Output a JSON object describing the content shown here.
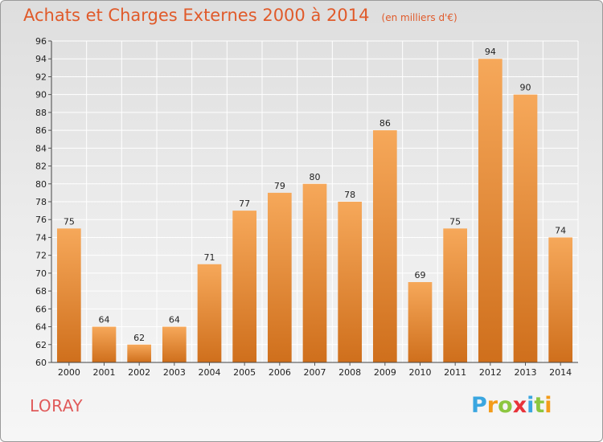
{
  "title": "Achats et Charges Externes 2000 à 2014",
  "unit": "(en milliers d'€)",
  "commune": "LORAY",
  "brand": {
    "letters": [
      "P",
      "r",
      "o",
      "x",
      "i",
      "t",
      "i"
    ],
    "colors": [
      "#3aa6e0",
      "#f39c1a",
      "#8cc63f",
      "#e8333a",
      "#3aa6e0",
      "#8cc63f",
      "#f39c1a"
    ]
  },
  "colors": {
    "bar_light": "#f6a85a",
    "bar_dark": "#cf6f1c",
    "grid": "#ffffff",
    "title": "#e05a2a"
  },
  "chart_data": {
    "type": "bar",
    "categories": [
      "2000",
      "2001",
      "2002",
      "2003",
      "2004",
      "2005",
      "2006",
      "2007",
      "2008",
      "2009",
      "2010",
      "2011",
      "2012",
      "2013",
      "2014"
    ],
    "values": [
      75,
      64,
      62,
      64,
      71,
      77,
      79,
      80,
      78,
      86,
      69,
      75,
      94,
      90,
      74
    ],
    "ylim": [
      60,
      96
    ],
    "yticks": [
      60,
      62,
      64,
      66,
      68,
      70,
      72,
      74,
      76,
      78,
      80,
      82,
      84,
      86,
      88,
      90,
      92,
      94,
      96
    ],
    "grid": true,
    "data_labels": true
  }
}
